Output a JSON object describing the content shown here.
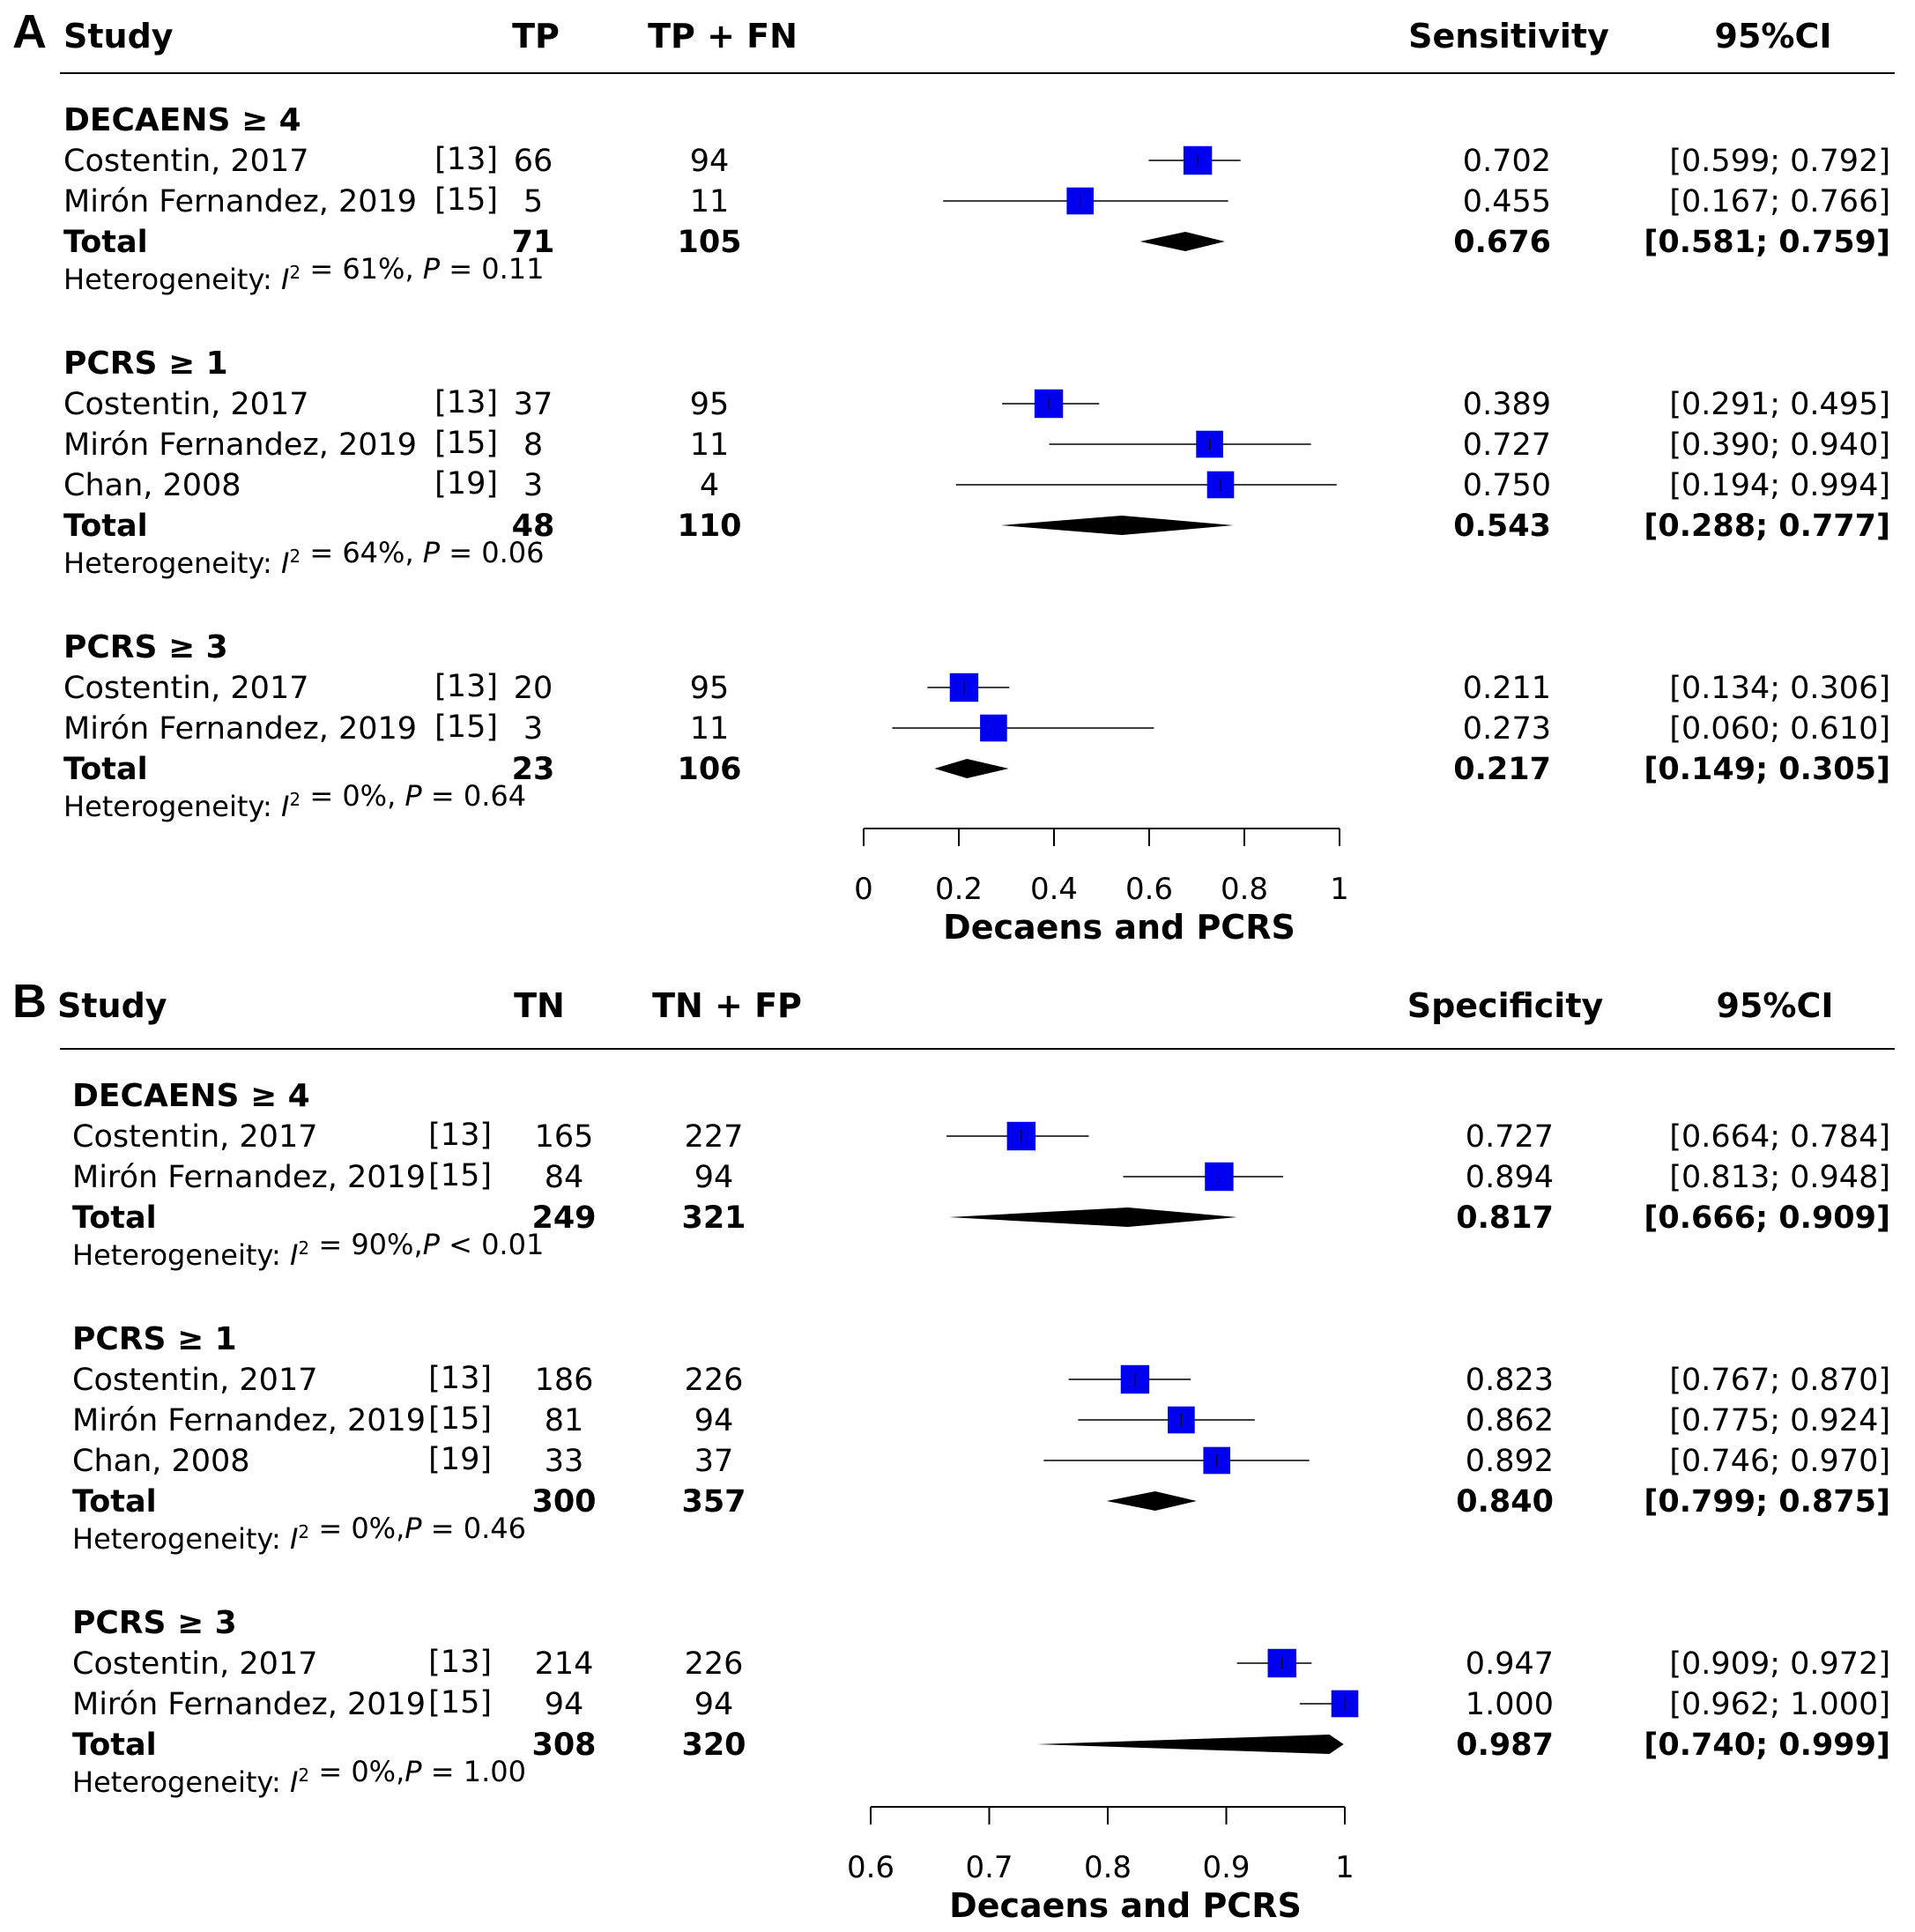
{
  "chart_data": [
    {
      "type": "forest",
      "panel": "A",
      "columns": {
        "study": "Study",
        "events": "TP",
        "total": "TP + FN",
        "estimate": "Sensitivity",
        "ci": "95%CI"
      },
      "xlabel": "Decaens and PCRS",
      "xlim": [
        0,
        1
      ],
      "xticks": [
        "0",
        "0.2",
        "0.4",
        "0.6",
        "0.8",
        "1"
      ],
      "groups": [
        {
          "name": "DECAENS ≥ 4",
          "studies": [
            {
              "name": "Costentin, 2017",
              "ref": "[13]",
              "events": "66",
              "total": "94",
              "est": "0.702",
              "ci": "[0.599; 0.792]",
              "x": 0.702,
              "lo": 0.599,
              "hi": 0.792,
              "size": 0.9
            },
            {
              "name": "Mirón Fernandez, 2019",
              "ref": "[15]",
              "events": "5",
              "total": "11",
              "est": "0.455",
              "ci": "[0.167; 0.766]",
              "x": 0.455,
              "lo": 0.167,
              "hi": 0.766,
              "size": 0.85
            }
          ],
          "total": {
            "label": "Total",
            "events": "71",
            "total": "105",
            "est": "0.676",
            "ci": "[0.581; 0.759]",
            "x": 0.676,
            "lo": 0.581,
            "hi": 0.759
          },
          "heterogeneity": {
            "prefix": "Heterogeneity: ",
            "i2": "61%",
            "p_sep": ", ",
            "p_rel": "= 0.11"
          }
        },
        {
          "name": "PCRS ≥ 1",
          "studies": [
            {
              "name": "Costentin, 2017",
              "ref": "[13]",
              "events": "37",
              "total": "95",
              "est": "0.389",
              "ci": "[0.291; 0.495]",
              "x": 0.389,
              "lo": 0.291,
              "hi": 0.495,
              "size": 0.9
            },
            {
              "name": "Mirón Fernandez, 2019",
              "ref": "[15]",
              "events": "8",
              "total": "11",
              "est": "0.727",
              "ci": "[0.390; 0.940]",
              "x": 0.727,
              "lo": 0.39,
              "hi": 0.94,
              "size": 0.85
            },
            {
              "name": "Chan, 2008",
              "ref": "[19]",
              "events": "3",
              "total": "4",
              "est": "0.750",
              "ci": "[0.194; 0.994]",
              "x": 0.75,
              "lo": 0.194,
              "hi": 0.994,
              "size": 0.85
            }
          ],
          "total": {
            "label": "Total",
            "events": "48",
            "total": "110",
            "est": "0.543",
            "ci": "[0.288; 0.777]",
            "x": 0.543,
            "lo": 0.288,
            "hi": 0.777
          },
          "heterogeneity": {
            "prefix": "Heterogeneity: ",
            "i2": "64%",
            "p_sep": ", ",
            "p_rel": "= 0.06"
          }
        },
        {
          "name": "PCRS ≥ 3",
          "studies": [
            {
              "name": "Costentin, 2017",
              "ref": "[13]",
              "events": "20",
              "total": "95",
              "est": "0.211",
              "ci": "[0.134; 0.306]",
              "x": 0.211,
              "lo": 0.134,
              "hi": 0.306,
              "size": 0.9
            },
            {
              "name": "Mirón Fernandez, 2019",
              "ref": "[15]",
              "events": "3",
              "total": "11",
              "est": "0.273",
              "ci": "[0.060; 0.610]",
              "x": 0.273,
              "lo": 0.06,
              "hi": 0.61,
              "size": 0.85
            }
          ],
          "total": {
            "label": "Total",
            "events": "23",
            "total": "106",
            "est": "0.217",
            "ci": "[0.149; 0.305]",
            "x": 0.217,
            "lo": 0.149,
            "hi": 0.305
          },
          "heterogeneity": {
            "prefix": "Heterogeneity: ",
            "i2": "0%",
            "p_sep": ", ",
            "p_rel": "= 0.64"
          }
        }
      ]
    },
    {
      "type": "forest",
      "panel": "B",
      "columns": {
        "study": "Study",
        "events": "TN",
        "total": "TN + FP",
        "estimate": "Specificity",
        "ci": "95%CI"
      },
      "xlabel": "Decaens and PCRS",
      "xlim": [
        0.6,
        1
      ],
      "xticks": [
        "0.6",
        "0.7",
        "0.8",
        "0.9",
        "1"
      ],
      "groups": [
        {
          "name": "DECAENS ≥ 4",
          "studies": [
            {
              "name": "Costentin, 2017",
              "ref": "[13]",
              "events": "165",
              "total": "227",
              "est": "0.727",
              "ci": "[0.664; 0.784]",
              "x": 0.727,
              "lo": 0.664,
              "hi": 0.784,
              "size": 0.9
            },
            {
              "name": "Mirón Fernandez, 2019",
              "ref": "[15]",
              "events": "84",
              "total": "94",
              "est": "0.894",
              "ci": "[0.813; 0.948]",
              "x": 0.894,
              "lo": 0.813,
              "hi": 0.948,
              "size": 0.9
            }
          ],
          "total": {
            "label": "Total",
            "events": "249",
            "total": "321",
            "est": "0.817",
            "ci": "[0.666; 0.909]",
            "x": 0.817,
            "lo": 0.666,
            "hi": 0.909
          },
          "heterogeneity": {
            "prefix": "Heterogeneity: ",
            "i2": "90%",
            "p_sep": ",",
            "p_rel": " < 0.01"
          }
        },
        {
          "name": "PCRS ≥ 1",
          "studies": [
            {
              "name": "Costentin, 2017",
              "ref": "[13]",
              "events": "186",
              "total": "226",
              "est": "0.823",
              "ci": "[0.767; 0.870]",
              "x": 0.823,
              "lo": 0.767,
              "hi": 0.87,
              "size": 0.9
            },
            {
              "name": "Mirón Fernandez, 2019",
              "ref": "[15]",
              "events": "81",
              "total": "94",
              "est": "0.862",
              "ci": "[0.775; 0.924]",
              "x": 0.862,
              "lo": 0.775,
              "hi": 0.924,
              "size": 0.85
            },
            {
              "name": "Chan, 2008",
              "ref": "[19]",
              "events": "33",
              "total": "37",
              "est": "0.892",
              "ci": "[0.746; 0.970]",
              "x": 0.892,
              "lo": 0.746,
              "hi": 0.97,
              "size": 0.85
            }
          ],
          "total": {
            "label": "Total",
            "events": "300",
            "total": "357",
            "est": "0.840",
            "ci": "[0.799; 0.875]",
            "x": 0.84,
            "lo": 0.799,
            "hi": 0.875
          },
          "heterogeneity": {
            "prefix": "Heterogeneity: ",
            "i2": "0%",
            "p_sep": ",",
            "p_rel": " = 0.46"
          }
        },
        {
          "name": "PCRS ≥ 3",
          "studies": [
            {
              "name": "Costentin, 2017",
              "ref": "[13]",
              "events": "214",
              "total": "226",
              "est": "0.947",
              "ci": "[0.909; 0.972]",
              "x": 0.947,
              "lo": 0.909,
              "hi": 0.972,
              "size": 0.9
            },
            {
              "name": "Mirón Fernandez, 2019",
              "ref": "[15]",
              "events": "94",
              "total": "94",
              "est": "1.000",
              "ci": "[0.962; 1.000]",
              "x": 1.0,
              "lo": 0.962,
              "hi": 1.0,
              "size": 0.85
            }
          ],
          "total": {
            "label": "Total",
            "events": "308",
            "total": "320",
            "est": "0.987",
            "ci": "[0.740; 0.999]",
            "x": 0.987,
            "lo": 0.74,
            "hi": 0.999
          },
          "heterogeneity": {
            "prefix": "Heterogeneity: ",
            "i2": "0%",
            "p_sep": ",",
            "p_rel": " = 1.00"
          }
        }
      ]
    }
  ],
  "colors": {
    "marker": "#0000ee",
    "ink": "#000000"
  }
}
